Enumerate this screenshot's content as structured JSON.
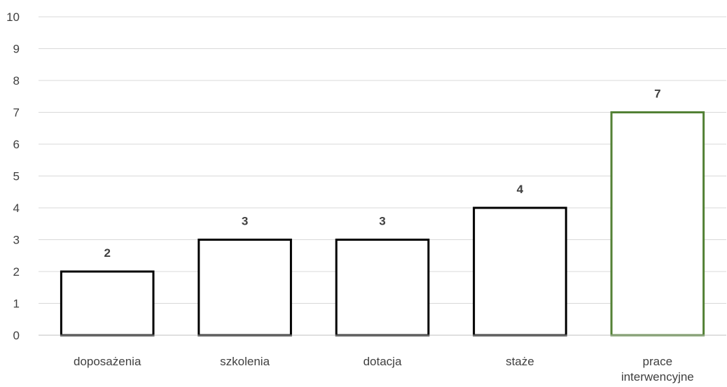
{
  "chart_data": {
    "type": "bar",
    "categories": [
      "doposażenia",
      "szkolenia",
      "dotacja",
      "staże",
      "prace interwencyjne"
    ],
    "category_lines": [
      [
        "doposażenia"
      ],
      [
        "szkolenia"
      ],
      [
        "dotacja"
      ],
      [
        "staże"
      ],
      [
        "prace",
        "interwencyjne"
      ]
    ],
    "values": [
      2,
      3,
      3,
      4,
      7
    ],
    "data_labels": [
      "2",
      "3",
      "3",
      "4",
      "7"
    ],
    "title": "",
    "xlabel": "",
    "ylabel": "",
    "ylim": [
      0,
      10
    ],
    "yticks": [
      "0",
      "1",
      "2",
      "3",
      "4",
      "5",
      "6",
      "7",
      "8",
      "9",
      "10"
    ],
    "grid": true,
    "legend": "none",
    "bar_fill": "#ffffff",
    "bar_colors": [
      "#000000",
      "#000000",
      "#000000",
      "#000000",
      "#538135"
    ]
  }
}
